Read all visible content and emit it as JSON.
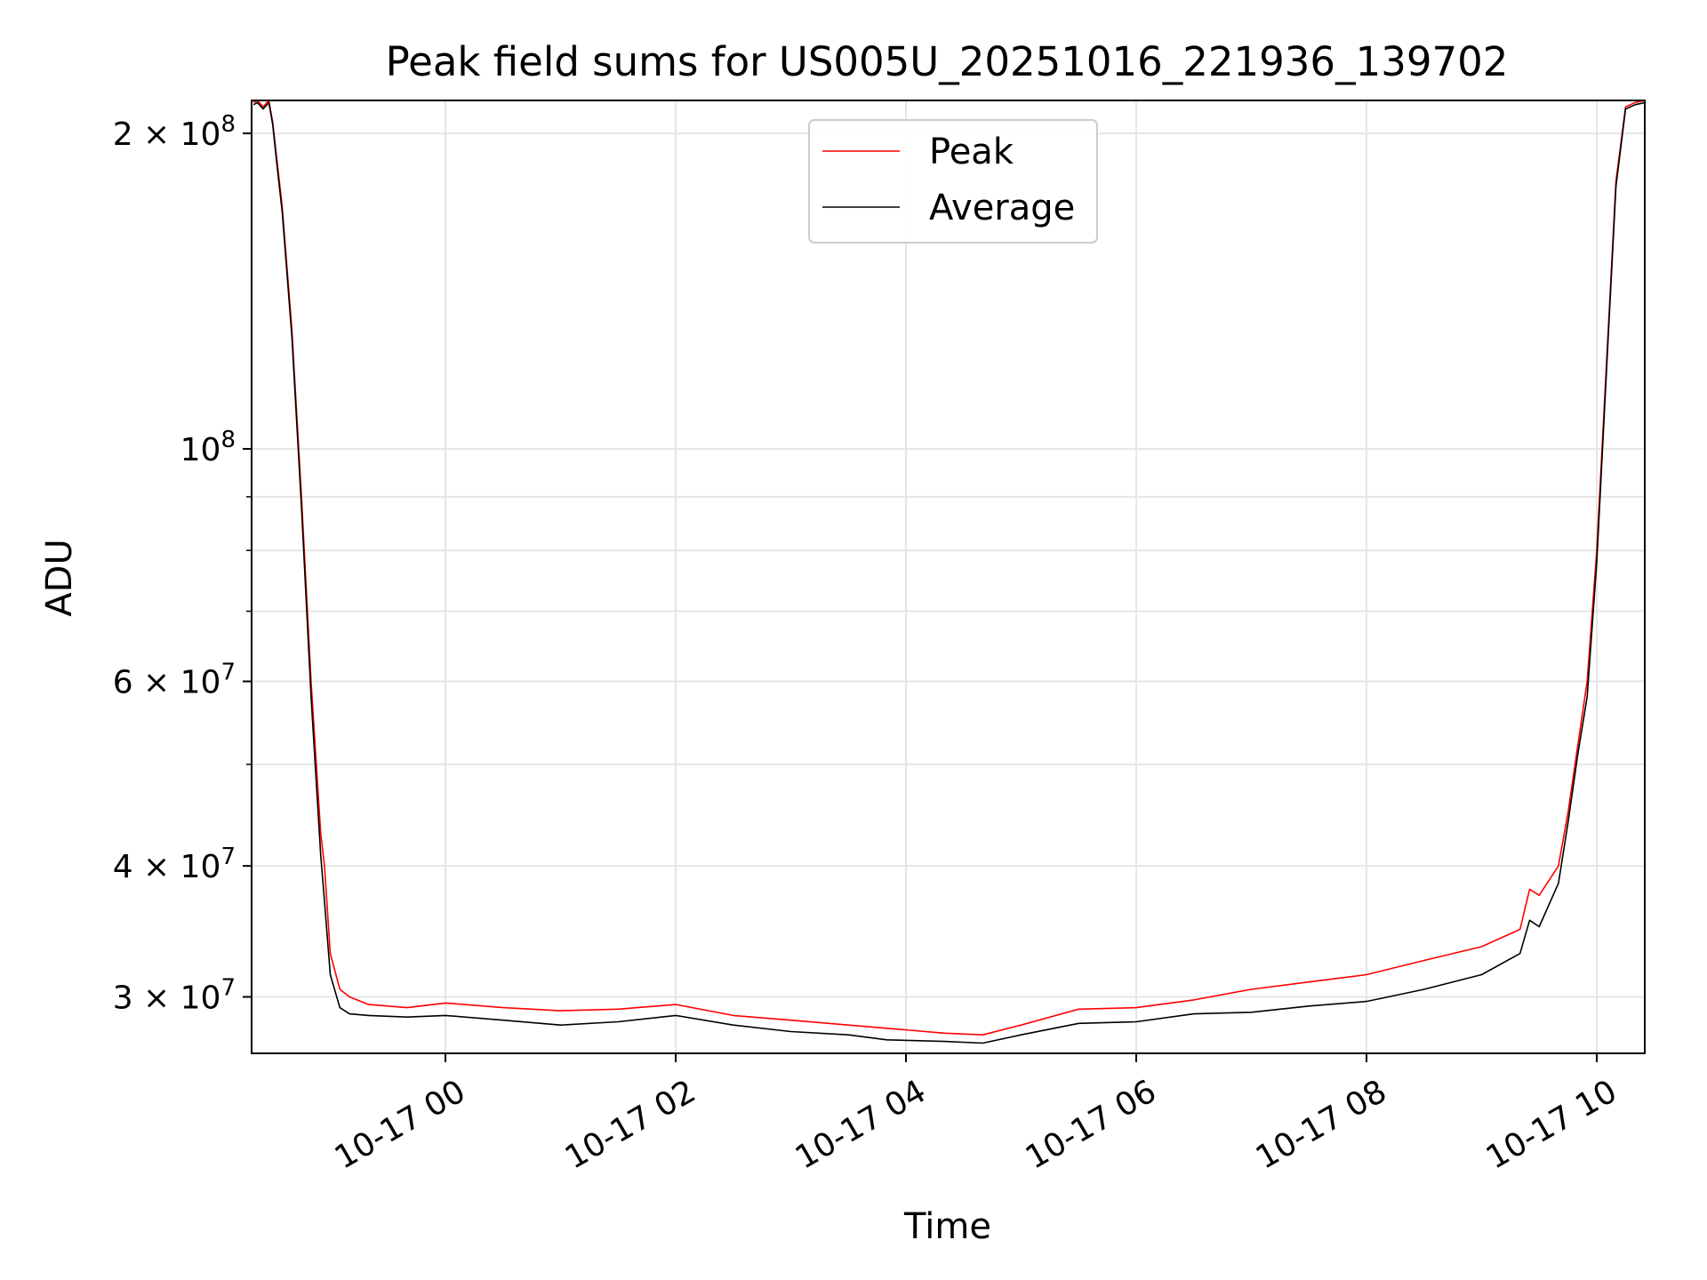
{
  "chart_data": {
    "type": "line",
    "title": "Peak field sums for US005U_20251016_221936_139702",
    "xlabel": "Time",
    "ylabel": "ADU",
    "yscale": "log",
    "ylim": [
      26500000,
      215000000
    ],
    "xlim": [
      "2025-10-16 22:19",
      "2025-10-17 10:25"
    ],
    "grid": true,
    "legend": {
      "placement": "top-center",
      "entries": [
        "Peak",
        "Average"
      ]
    },
    "x_ticks": [
      {
        "value": "2025-10-17 00:00",
        "label": "10-17 00"
      },
      {
        "value": "2025-10-17 02:00",
        "label": "10-17 02"
      },
      {
        "value": "2025-10-17 04:00",
        "label": "10-17 04"
      },
      {
        "value": "2025-10-17 06:00",
        "label": "10-17 06"
      },
      {
        "value": "2025-10-17 08:00",
        "label": "10-17 08"
      },
      {
        "value": "2025-10-17 10:00",
        "label": "10-17 10"
      }
    ],
    "y_ticks": [
      {
        "value": 200000000,
        "mantissa": "2",
        "exponent": "8"
      },
      {
        "value": 100000000,
        "mantissa": "",
        "exponent": "8"
      },
      {
        "value": 60000000,
        "mantissa": "6",
        "exponent": "7"
      },
      {
        "value": 40000000,
        "mantissa": "4",
        "exponent": "7"
      },
      {
        "value": 30000000,
        "mantissa": "3",
        "exponent": "7"
      }
    ],
    "y_minor_grid": [
      90000000,
      80000000,
      70000000,
      50000000
    ],
    "series": [
      {
        "name": "Peak",
        "color": "#ff0000",
        "x": [
          "2025-10-16 22:20",
          "2025-10-16 22:22",
          "2025-10-16 22:25",
          "2025-10-16 22:28",
          "2025-10-16 22:30",
          "2025-10-16 22:32",
          "2025-10-16 22:35",
          "2025-10-16 22:40",
          "2025-10-16 22:45",
          "2025-10-16 22:50",
          "2025-10-16 22:55",
          "2025-10-16 22:57",
          "2025-10-16 23:00",
          "2025-10-16 23:05",
          "2025-10-16 23:10",
          "2025-10-16 23:20",
          "2025-10-16 23:40",
          "2025-10-17 00:00",
          "2025-10-17 00:30",
          "2025-10-17 01:00",
          "2025-10-17 01:30",
          "2025-10-17 02:00",
          "2025-10-17 02:30",
          "2025-10-17 03:00",
          "2025-10-17 03:30",
          "2025-10-17 03:50",
          "2025-10-17 04:20",
          "2025-10-17 04:40",
          "2025-10-17 05:00",
          "2025-10-17 05:30",
          "2025-10-17 06:00",
          "2025-10-17 06:30",
          "2025-10-17 07:00",
          "2025-10-17 07:30",
          "2025-10-17 08:00",
          "2025-10-17 08:30",
          "2025-10-17 09:00",
          "2025-10-17 09:20",
          "2025-10-17 09:25",
          "2025-10-17 09:30",
          "2025-10-17 09:40",
          "2025-10-17 09:45",
          "2025-10-17 09:50",
          "2025-10-17 09:55",
          "2025-10-17 10:00",
          "2025-10-17 10:05",
          "2025-10-17 10:10",
          "2025-10-17 10:15",
          "2025-10-17 10:20",
          "2025-10-17 10:25"
        ],
        "y": [
          214000000,
          215000000,
          212000000,
          215000000,
          205000000,
          190000000,
          170000000,
          130000000,
          90000000,
          60000000,
          43000000,
          40000000,
          33000000,
          30500000,
          30000000,
          29500000,
          29300000,
          29600000,
          29300000,
          29100000,
          29200000,
          29500000,
          28800000,
          28500000,
          28200000,
          28000000,
          27700000,
          27600000,
          28200000,
          29200000,
          29300000,
          29800000,
          30500000,
          31000000,
          31500000,
          32500000,
          33500000,
          34800000,
          38000000,
          37500000,
          40000000,
          45000000,
          52000000,
          60000000,
          80000000,
          120000000,
          180000000,
          212000000,
          214000000,
          215000000
        ]
      },
      {
        "name": "Average",
        "color": "#000000",
        "x": [
          "2025-10-16 22:20",
          "2025-10-16 22:22",
          "2025-10-16 22:25",
          "2025-10-16 22:28",
          "2025-10-16 22:30",
          "2025-10-16 22:32",
          "2025-10-16 22:35",
          "2025-10-16 22:40",
          "2025-10-16 22:45",
          "2025-10-16 22:50",
          "2025-10-16 22:55",
          "2025-10-16 22:57",
          "2025-10-16 23:00",
          "2025-10-16 23:05",
          "2025-10-16 23:10",
          "2025-10-16 23:20",
          "2025-10-16 23:40",
          "2025-10-17 00:00",
          "2025-10-17 00:30",
          "2025-10-17 01:00",
          "2025-10-17 01:30",
          "2025-10-17 02:00",
          "2025-10-17 02:30",
          "2025-10-17 03:00",
          "2025-10-17 03:30",
          "2025-10-17 03:50",
          "2025-10-17 04:20",
          "2025-10-17 04:40",
          "2025-10-17 05:00",
          "2025-10-17 05:30",
          "2025-10-17 06:00",
          "2025-10-17 06:30",
          "2025-10-17 07:00",
          "2025-10-17 07:30",
          "2025-10-17 08:00",
          "2025-10-17 08:30",
          "2025-10-17 09:00",
          "2025-10-17 09:20",
          "2025-10-17 09:25",
          "2025-10-17 09:30",
          "2025-10-17 09:40",
          "2025-10-17 09:45",
          "2025-10-17 09:50",
          "2025-10-17 09:55",
          "2025-10-17 10:00",
          "2025-10-17 10:05",
          "2025-10-17 10:10",
          "2025-10-17 10:15",
          "2025-10-17 10:20",
          "2025-10-17 10:25"
        ],
        "y": [
          213000000,
          214000000,
          211000000,
          214000000,
          204000000,
          188000000,
          168000000,
          128000000,
          88000000,
          58000000,
          41000000,
          37000000,
          31500000,
          29300000,
          28900000,
          28800000,
          28700000,
          28800000,
          28500000,
          28200000,
          28400000,
          28800000,
          28200000,
          27800000,
          27600000,
          27300000,
          27200000,
          27100000,
          27600000,
          28300000,
          28400000,
          28900000,
          29000000,
          29400000,
          29700000,
          30500000,
          31500000,
          33000000,
          35500000,
          35000000,
          38500000,
          44000000,
          51000000,
          58000000,
          78000000,
          118000000,
          178000000,
          211000000,
          213000000,
          214000000
        ]
      }
    ]
  }
}
